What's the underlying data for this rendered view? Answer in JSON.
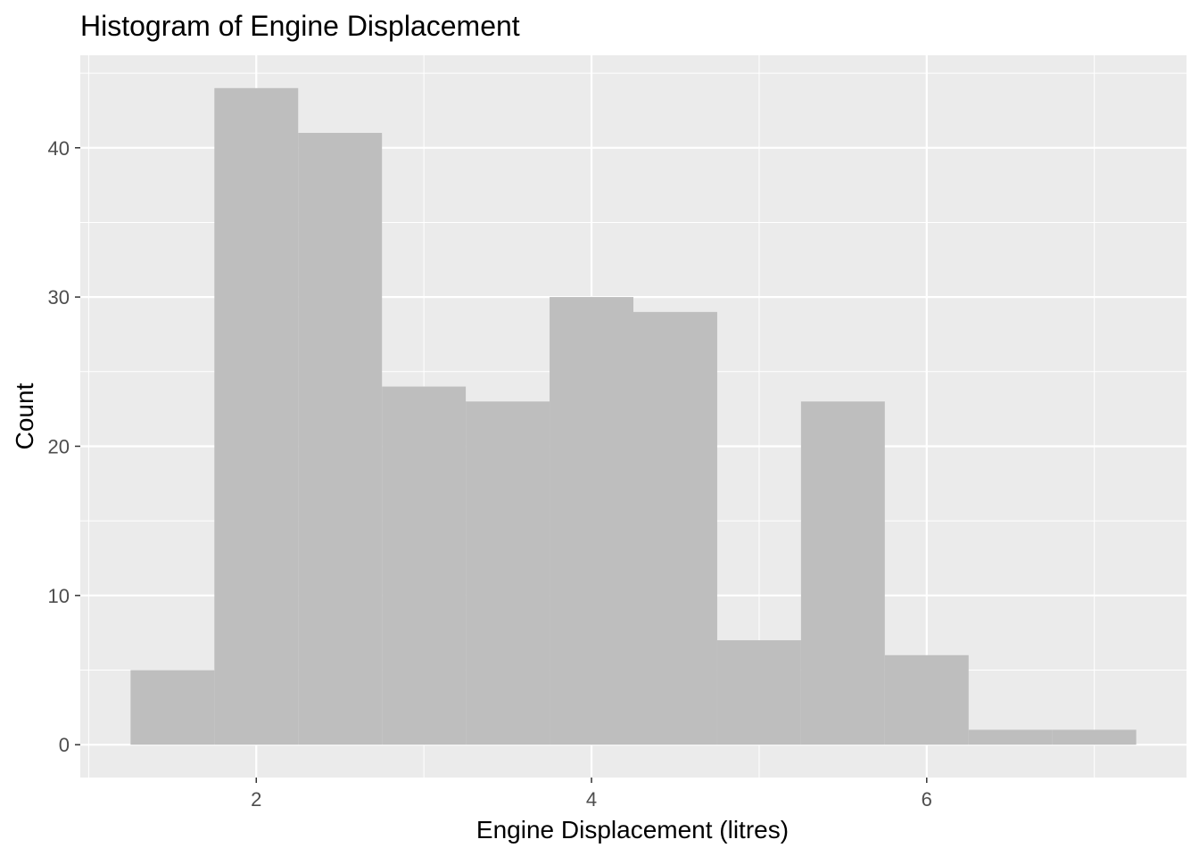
{
  "chart_data": {
    "type": "bar",
    "title": "Histogram of Engine Displacement",
    "xlabel": "Engine Displacement (litres)",
    "ylabel": "Count",
    "bin_width": 0.5,
    "bins": [
      {
        "x0": 1.25,
        "x1": 1.75,
        "count": 5
      },
      {
        "x0": 1.75,
        "x1": 2.25,
        "count": 44
      },
      {
        "x0": 2.25,
        "x1": 2.75,
        "count": 41
      },
      {
        "x0": 2.75,
        "x1": 3.25,
        "count": 24
      },
      {
        "x0": 3.25,
        "x1": 3.75,
        "count": 23
      },
      {
        "x0": 3.75,
        "x1": 4.25,
        "count": 30
      },
      {
        "x0": 4.25,
        "x1": 4.75,
        "count": 29
      },
      {
        "x0": 4.75,
        "x1": 5.25,
        "count": 7
      },
      {
        "x0": 5.25,
        "x1": 5.75,
        "count": 23
      },
      {
        "x0": 5.75,
        "x1": 6.25,
        "count": 6
      },
      {
        "x0": 6.25,
        "x1": 6.75,
        "count": 1
      },
      {
        "x0": 6.75,
        "x1": 7.25,
        "count": 1
      }
    ],
    "xlim": [
      0.95,
      7.55
    ],
    "ylim": [
      -2.2,
      46.2
    ],
    "x_ticks": [
      2,
      4,
      6
    ],
    "x_tick_labels": [
      "2",
      "4",
      "6"
    ],
    "x_minor_ticks": [
      1,
      3,
      5,
      7
    ],
    "y_ticks": [
      0,
      10,
      20,
      30,
      40
    ],
    "y_tick_labels": [
      "0",
      "10",
      "20",
      "30",
      "40"
    ],
    "y_minor_ticks": [
      5,
      15,
      25,
      35,
      45
    ],
    "grid": true,
    "legend": "none",
    "colors": {
      "bar_fill": "#bebebe",
      "panel_background": "#ebebeb",
      "grid": "#ffffff",
      "tick": "#333333"
    }
  }
}
